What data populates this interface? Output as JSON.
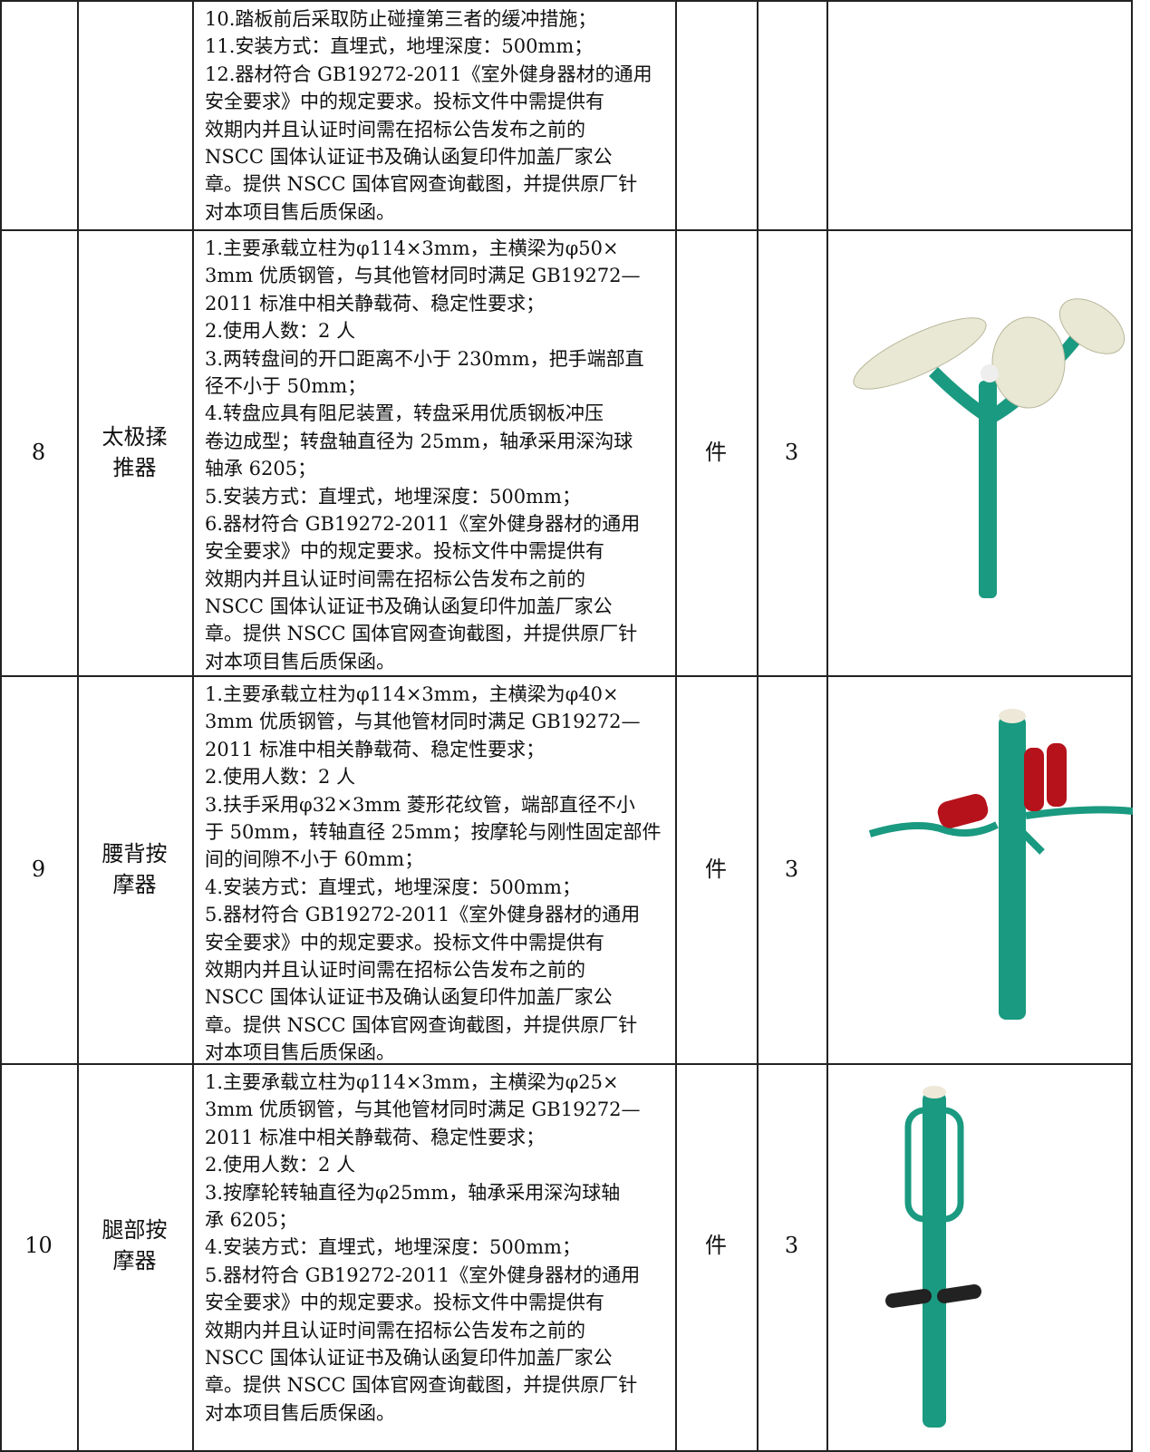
{
  "table": {
    "rows": [
      {
        "spec": [
          "10.踏板前后采取防止碰撞第三者的缓冲措施；",
          "11.安装方式：直埋式，地埋深度：500mm；",
          "12.器材符合 GB19272-2011《室外健身器材的通用",
          "安全要求》中的规定要求。投标文件中需提供有",
          "效期内并且认证时间需在招标公告发布之前的",
          "NSCC 国体认证证书及确认函复印件加盖厂家公",
          "章。提供 NSCC 国体官网查询截图，并提供原厂针",
          "对本项目售后质保函。"
        ]
      },
      {
        "no": 8,
        "name": [
          "太极揉",
          "推器"
        ],
        "spec": [
          "1.主要承载立柱为φ114×3mm，主横梁为φ50×",
          "3mm 优质钢管，与其他管材同时满足 GB19272—",
          "2011 标准中相关静载荷、稳定性要求；",
          "2.使用人数：2 人",
          "3.两转盘间的开口距离不小于 230mm，把手端部直",
          "径不小于 50mm；",
          "4.转盘应具有阻尼装置，转盘采用优质钢板冲压",
          "卷边成型；转盘轴直径为 25mm，轴承采用深沟球",
          "轴承 6205；",
          "5.安装方式：直埋式，地埋深度：500mm；",
          "6.器材符合 GB19272-2011《室外健身器材的通用",
          "安全要求》中的规定要求。投标文件中需提供有",
          "效期内并且认证时间需在招标公告发布之前的",
          "NSCC 国体认证证书及确认函复印件加盖厂家公",
          "章。提供 NSCC 国体官网查询截图，并提供原厂针",
          "对本项目售后质保函。"
        ],
        "unit": "件",
        "qty": 3
      },
      {
        "no": 9,
        "name": [
          "腰背按",
          "摩器"
        ],
        "spec": [
          "1.主要承载立柱为φ114×3mm，主横梁为φ40×",
          "3mm 优质钢管，与其他管材同时满足 GB19272—",
          "2011 标准中相关静载荷、稳定性要求；",
          "2.使用人数：2 人",
          "3.扶手采用φ32×3mm 菱形花纹管，端部直径不小",
          "于 50mm，转轴直径 25mm；按摩轮与刚性固定部件",
          "间的间隙不小于 60mm；",
          "4.安装方式：直埋式，地埋深度：500mm；",
          "5.器材符合 GB19272-2011《室外健身器材的通用",
          "安全要求》中的规定要求。投标文件中需提供有",
          "效期内并且认证时间需在招标公告发布之前的",
          "NSCC 国体认证证书及确认函复印件加盖厂家公",
          "章。提供 NSCC 国体官网查询截图，并提供原厂针",
          "对本项目售后质保函。"
        ],
        "unit": "件",
        "qty": 3
      },
      {
        "no": 10,
        "name": [
          "腿部按",
          "摩器"
        ],
        "spec": [
          "1.主要承载立柱为φ114×3mm，主横梁为φ25×",
          "3mm 优质钢管，与其他管材同时满足 GB19272—",
          "2011 标准中相关静载荷、稳定性要求；",
          "2.使用人数：2 人",
          "3.按摩轮转轴直径为φ25mm，轴承采用深沟球轴",
          "承 6205；",
          "4.安装方式：直埋式，地埋深度：500mm；",
          "5.器材符合 GB19272-2011《室外健身器材的通用",
          "安全要求》中的规定要求。投标文件中需提供有",
          "效期内并且认证时间需在招标公告发布之前的",
          "NSCC 国体认证证书及确认函复印件加盖厂家公",
          "章。提供 NSCC 国体官网查询截图，并提供原厂针",
          "对本项目售后质保函。"
        ],
        "unit": "件",
        "qty": 3
      }
    ]
  }
}
